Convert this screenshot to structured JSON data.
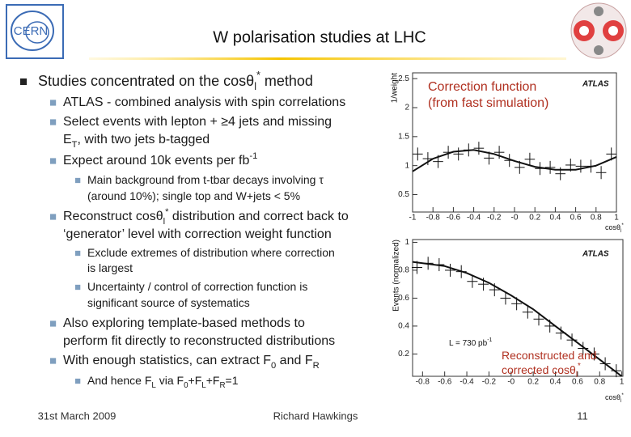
{
  "header": {
    "title": "W polarisation studies at LHC",
    "logo": "CERN"
  },
  "bullets": [
    {
      "lines": [
        [
          "Studies concentrated on the cosθ",
          {
            "sub": "l"
          },
          {
            "sup": "*"
          },
          " method"
        ]
      ],
      "children": [
        {
          "lines": [
            [
              "ATLAS - combined analysis with spin correlations"
            ]
          ]
        },
        {
          "lines": [
            [
              "Select events with lepton + ≥4 jets and missing"
            ],
            [
              "E",
              {
                "sub": "T"
              },
              ", with two jets b-tagged"
            ]
          ]
        },
        {
          "lines": [
            [
              "Expect around 10k events per fb",
              {
                "sup": "-1"
              }
            ]
          ],
          "children": [
            {
              "lines": [
                [
                  "Main background from t-tbar decays involving τ"
                ],
                [
                  "(around 10%); single top and W+jets < 5%"
                ]
              ]
            }
          ]
        },
        {
          "lines": [
            [
              "Reconstruct cosθ",
              {
                "sub": "l"
              },
              {
                "sup": "*"
              },
              " distribution and correct back to"
            ],
            [
              "‘generator’ level with correction weight function"
            ]
          ],
          "children": [
            {
              "lines": [
                [
                  "Exclude extremes of distribution where correction"
                ],
                [
                  "is largest"
                ]
              ]
            },
            {
              "lines": [
                [
                  "Uncertainty / control of correction function is"
                ],
                [
                  "significant source of systematics"
                ]
              ]
            }
          ]
        },
        {
          "lines": [
            [
              "Also exploring template-based methods to"
            ],
            [
              "perform fit directly to reconstructed distributions"
            ]
          ]
        },
        {
          "lines": [
            [
              "With enough statistics, can extract F",
              {
                "sub": "0"
              },
              " and F",
              {
                "sub": "R"
              }
            ]
          ],
          "children": [
            {
              "lines": [
                [
                  "And hence F",
                  {
                    "sub": "L"
                  },
                  " via F",
                  {
                    "sub": "0"
                  },
                  "+F",
                  {
                    "sub": "L"
                  },
                  "+F",
                  {
                    "sub": "R"
                  },
                  "=1"
                ]
              ]
            }
          ]
        }
      ]
    }
  ],
  "plots": [
    {
      "type": "scatter",
      "brand": "ATLAS",
      "color": "#111111",
      "annotation_color": "#b03020",
      "annotation": [
        [
          "Correction function"
        ],
        [
          "(from fast simulation)"
        ]
      ],
      "ylabel": "1/weight",
      "xlabel": [
        "cosθ",
        {
          "sub": "l"
        },
        {
          "sup": "*"
        }
      ],
      "xlim": [
        -1,
        1
      ],
      "ylim": [
        0.2,
        2.6
      ],
      "xticks": [
        -1,
        -0.8,
        -0.6,
        -0.4,
        -0.2,
        {
          "value": 0,
          "label": "-0"
        },
        0.2,
        0.4,
        0.6,
        0.8,
        1
      ],
      "yticks": [
        0.5,
        1,
        1.5,
        2,
        2.5
      ],
      "x": [
        -0.95,
        -0.85,
        -0.75,
        -0.65,
        -0.55,
        -0.45,
        -0.35,
        -0.25,
        -0.15,
        -0.05,
        0.05,
        0.15,
        0.25,
        0.35,
        0.45,
        0.55,
        0.65,
        0.75,
        0.85,
        0.95
      ],
      "values": [
        1.2,
        1.12,
        1.07,
        1.23,
        1.2,
        1.27,
        1.3,
        1.13,
        1.23,
        1.09,
        0.97,
        1.11,
        0.95,
        0.97,
        0.86,
        1.01,
        0.99,
        0.99,
        0.88,
        1.2
      ],
      "curve": {
        "x": [
          -1,
          -0.8,
          -0.6,
          -0.4,
          -0.2,
          0,
          0.2,
          0.4,
          0.6,
          0.8,
          1
        ],
        "values": [
          0.9,
          1.12,
          1.24,
          1.27,
          1.2,
          1.08,
          0.98,
          0.93,
          0.93,
          1.0,
          1.15
        ]
      }
    },
    {
      "type": "scatter",
      "brand": "ATLAS",
      "color": "#111111",
      "annotation_color": "#b03020",
      "annotation": [
        [
          "Reconstructed and"
        ],
        [
          "corrected cosθ",
          {
            "sub": "l"
          },
          {
            "sup": "*"
          }
        ]
      ],
      "lumi": [
        "L = 730 pb",
        {
          "sup": "-1"
        }
      ],
      "ylabel": "Events (normalized)",
      "xlabel": [
        "cosθ",
        {
          "sub": "l"
        },
        {
          "sup": "*"
        }
      ],
      "xlim": [
        -0.89,
        1.01
      ],
      "ylim": [
        0.04,
        1.02
      ],
      "xticks": [
        -0.8,
        -0.6,
        -0.4,
        -0.2,
        {
          "value": 0,
          "label": "-0"
        },
        0.2,
        0.4,
        0.6,
        0.8,
        1
      ],
      "yticks": [
        0.2,
        0.4,
        0.6,
        0.8,
        1
      ],
      "x": [
        -0.85,
        -0.75,
        -0.65,
        -0.55,
        -0.45,
        -0.35,
        -0.25,
        -0.15,
        -0.05,
        0.05,
        0.15,
        0.25,
        0.35,
        0.45,
        0.55,
        0.65,
        0.75,
        0.85,
        0.95
      ],
      "values": [
        0.82,
        0.85,
        0.84,
        0.8,
        0.79,
        0.72,
        0.7,
        0.66,
        0.6,
        0.56,
        0.5,
        0.45,
        0.4,
        0.35,
        0.3,
        0.24,
        0.2,
        0.13,
        0.08
      ],
      "curve": {
        "x": [
          -0.89,
          -0.6,
          -0.4,
          -0.2,
          0,
          0.2,
          0.4,
          0.6,
          0.8,
          1.0
        ],
        "values": [
          0.86,
          0.83,
          0.78,
          0.71,
          0.62,
          0.52,
          0.4,
          0.28,
          0.16,
          0.04
        ]
      }
    }
  ],
  "footer": {
    "date": "31st March 2009",
    "author": "Richard Hawkings",
    "page": "11"
  }
}
